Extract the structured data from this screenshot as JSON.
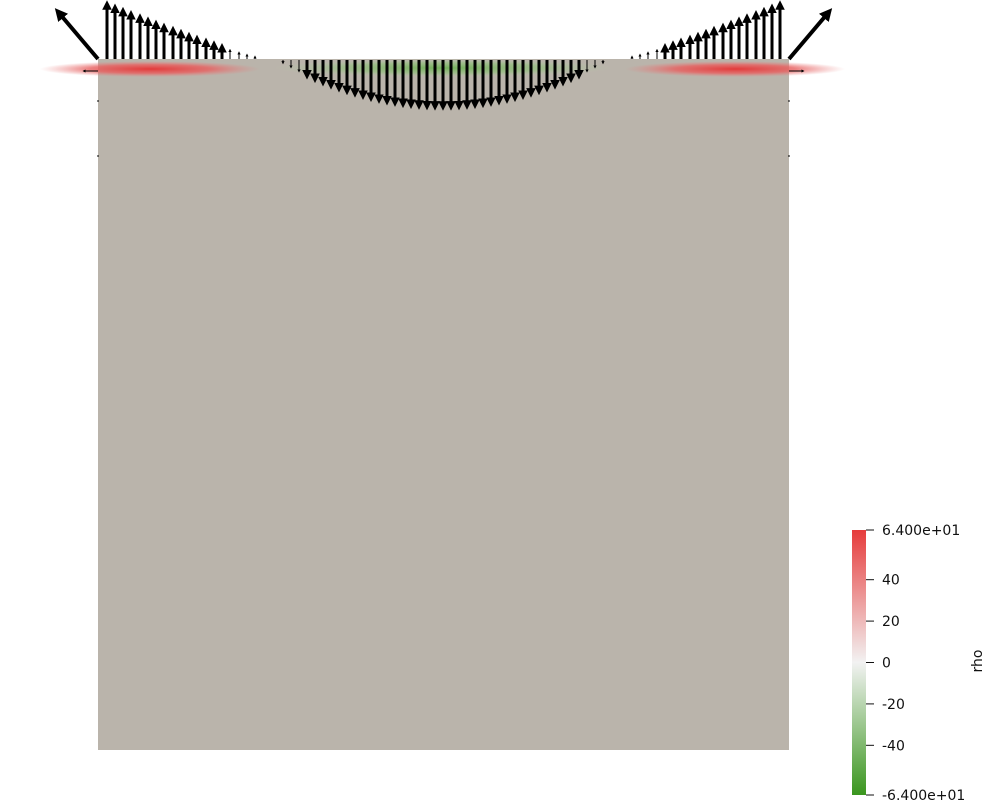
{
  "colorbar": {
    "title": "rho",
    "range": [
      -64,
      64
    ],
    "tick_labels": [
      "6.400e+01",
      "40",
      "20",
      "0",
      "-20",
      "-40",
      "-6.400e+01"
    ],
    "tick_values": [
      64,
      40,
      20,
      0,
      -20,
      -40,
      -64
    ],
    "colors": {
      "max": "#e63c3c",
      "mid": "#f2f2f2",
      "min": "#3a961e"
    }
  },
  "domain_color": "#bab4ab"
}
